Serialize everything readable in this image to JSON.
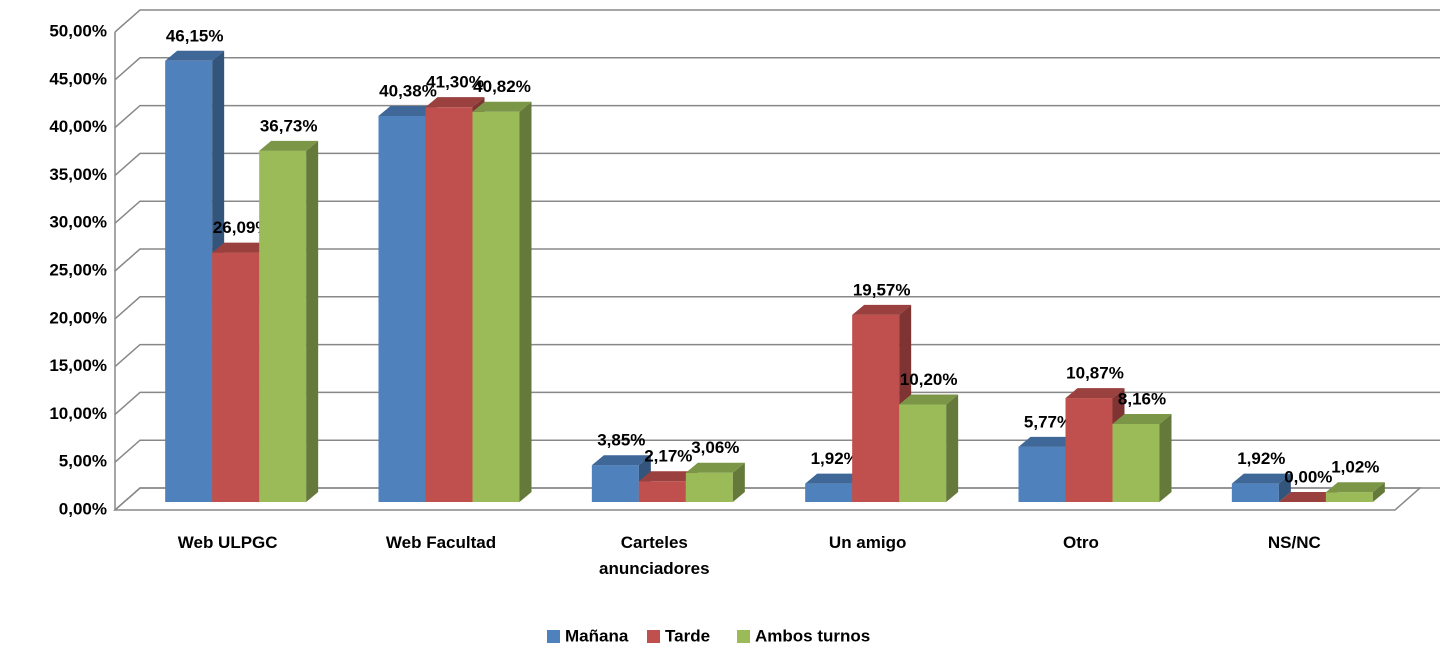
{
  "chart_data": {
    "type": "bar3d",
    "categories": [
      "Web ULPGC",
      "Web Facultad",
      "Carteles anunciadores",
      "Un amigo",
      "Otro",
      "NS/NC"
    ],
    "series": [
      {
        "name": "Mañana",
        "color": "#4f81bd",
        "values": [
          46.15,
          40.38,
          3.85,
          1.92,
          5.77,
          1.92
        ],
        "value_labels": [
          "46,15%",
          "40,38%",
          "3,85%",
          "1,92%",
          "5,77%",
          "1,92%"
        ]
      },
      {
        "name": "Tarde",
        "color": "#c0504d",
        "values": [
          26.09,
          41.3,
          2.17,
          19.57,
          10.87,
          0.0
        ],
        "value_labels": [
          "26,09%",
          "41,30%",
          "2,17%",
          "19,57%",
          "10,87%",
          "0,00%"
        ]
      },
      {
        "name": "Ambos turnos",
        "color": "#9bbb59",
        "values": [
          36.73,
          40.82,
          3.06,
          10.2,
          8.16,
          1.02
        ],
        "value_labels": [
          "36,73%",
          "40,82%",
          "3,06%",
          "10,20%",
          "8,16%",
          "1,02%"
        ]
      }
    ],
    "ylim": [
      0,
      50
    ],
    "yticks": [
      {
        "value": 0,
        "label": "0,00%"
      },
      {
        "value": 5,
        "label": "5,00%"
      },
      {
        "value": 10,
        "label": "10,00%"
      },
      {
        "value": 15,
        "label": "15,00%"
      },
      {
        "value": 20,
        "label": "20,00%"
      },
      {
        "value": 25,
        "label": "25,00%"
      },
      {
        "value": 30,
        "label": "30,00%"
      },
      {
        "value": 35,
        "label": "35,00%"
      },
      {
        "value": 40,
        "label": "40,00%"
      },
      {
        "value": 45,
        "label": "45,00%"
      },
      {
        "value": 50,
        "label": "50,00%"
      }
    ],
    "grid": true,
    "legend": "bottom"
  }
}
